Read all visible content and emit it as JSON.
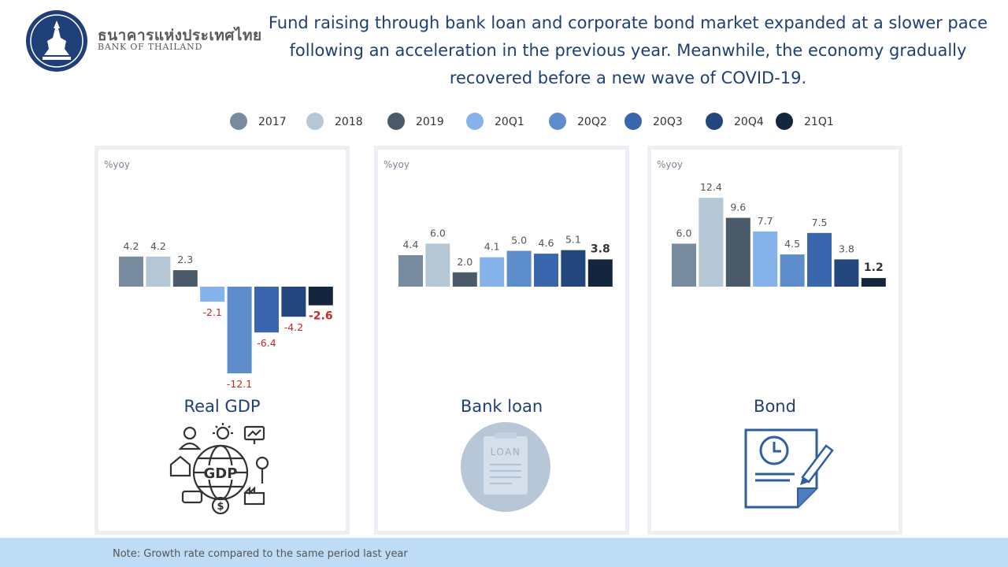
{
  "header": {
    "logo_thai": "ธนาคารแห่งประเทศไทย",
    "logo_en": "BANK OF THAILAND",
    "headline_lines": [
      "Fund raising through bank loan and corporate bond market expanded at a slower pace",
      "following an acceleration in the previous year. Meanwhile, the economy gradually",
      "recovered before a new wave of COVID-19."
    ]
  },
  "legend": [
    {
      "label": "2017",
      "color": "#778a9e"
    },
    {
      "label": "2018",
      "color": "#b5c7d4"
    },
    {
      "label": "2019",
      "color": "#4b5a69"
    },
    {
      "label": "20Q1",
      "color": "#85b2ea"
    },
    {
      "label": "20Q2",
      "color": "#5e8dcb"
    },
    {
      "label": "20Q3",
      "color": "#3a66ad"
    },
    {
      "label": "20Q4",
      "color": "#23477c"
    },
    {
      "label": "21Q1",
      "color": "#14253e"
    }
  ],
  "chart_data": [
    {
      "type": "bar",
      "title": "Real GDP",
      "ylabel": "%yoy",
      "categories": [
        "2017",
        "2018",
        "2019",
        "20Q1",
        "20Q2",
        "20Q3",
        "20Q4",
        "21Q1"
      ],
      "values": [
        4.2,
        4.2,
        2.3,
        -2.1,
        -12.1,
        -6.4,
        -4.2,
        -2.6
      ],
      "highlight_last": true,
      "icon": "gdp-globe-icon"
    },
    {
      "type": "bar",
      "title": "Bank loan",
      "ylabel": "%yoy",
      "categories": [
        "2017",
        "2018",
        "2019",
        "20Q1",
        "20Q2",
        "20Q3",
        "20Q4",
        "21Q1"
      ],
      "values": [
        4.4,
        6.0,
        2.0,
        4.1,
        5.0,
        4.6,
        5.1,
        3.8
      ],
      "highlight_last": true,
      "icon": "loan-document-icon",
      "icon_text": "LOAN"
    },
    {
      "type": "bar",
      "title": "Bond",
      "ylabel": "%yoy",
      "categories": [
        "2017",
        "2018",
        "2019",
        "20Q1",
        "20Q2",
        "20Q3",
        "20Q4",
        "21Q1"
      ],
      "values": [
        6.0,
        12.4,
        9.6,
        7.7,
        4.5,
        7.5,
        3.8,
        1.2
      ],
      "highlight_last": true,
      "icon": "bond-contract-icon"
    }
  ],
  "footer": {
    "note": "Note: Growth rate compared to the same period last year"
  },
  "colors": {
    "negative_label": "#c62828",
    "positive_label": "#555555",
    "title": "#1f3f78"
  }
}
